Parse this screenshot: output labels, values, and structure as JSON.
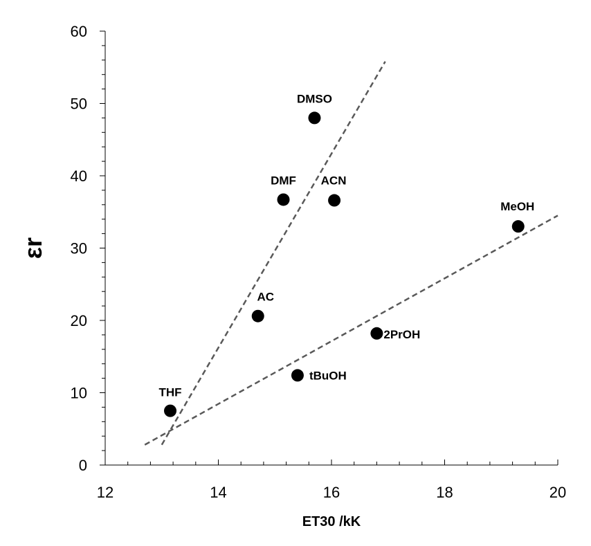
{
  "chart_data": {
    "type": "scatter",
    "title": "",
    "xlabel": "ET30 /kK",
    "ylabel": "εr",
    "xlim": [
      12,
      20
    ],
    "ylim": [
      0,
      60
    ],
    "x_ticks": [
      12,
      14,
      16,
      18,
      20
    ],
    "y_ticks": [
      0,
      10,
      20,
      30,
      40,
      50,
      60
    ],
    "grid": false,
    "legend": "none",
    "marker_color": "#000000",
    "trendline_color": "#595959",
    "points": [
      {
        "label": "THF",
        "x": 13.15,
        "y": 7.5
      },
      {
        "label": "AC",
        "x": 14.7,
        "y": 20.6
      },
      {
        "label": "DMF",
        "x": 15.15,
        "y": 36.7
      },
      {
        "label": "DMSO",
        "x": 15.7,
        "y": 48.0
      },
      {
        "label": "ACN",
        "x": 16.05,
        "y": 36.6
      },
      {
        "label": "tBuOH",
        "x": 15.4,
        "y": 12.4
      },
      {
        "label": "2PrOH",
        "x": 16.8,
        "y": 18.2
      },
      {
        "label": "MeOH",
        "x": 19.3,
        "y": 33.0
      }
    ],
    "trendlines": [
      {
        "x": [
          13.0,
          16.95
        ],
        "y": [
          2.8,
          55.8
        ]
      },
      {
        "x": [
          12.7,
          20.0
        ],
        "y": [
          2.8,
          34.5
        ]
      }
    ]
  }
}
